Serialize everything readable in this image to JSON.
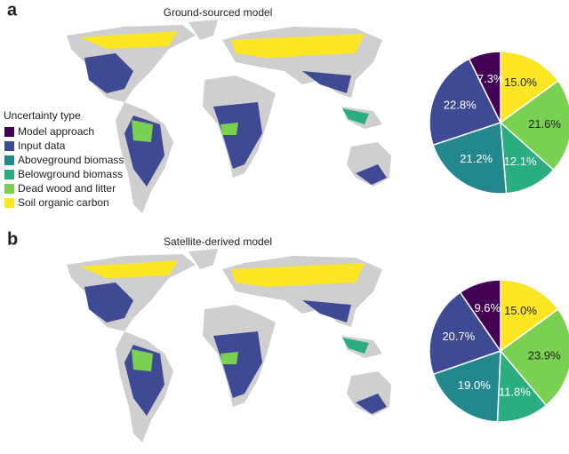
{
  "chart_data": [
    {
      "type": "pie",
      "panel_label": "a",
      "title": "Ground-sourced model",
      "legend_title": "Uncertainty type",
      "categories": [
        "Soil organic carbon",
        "Dead wood and litter",
        "Belowground biomass",
        "Aboveground biomass",
        "Input data",
        "Model approach"
      ],
      "colors": [
        "#fde725",
        "#7ad151",
        "#2aae80",
        "#23888e",
        "#3e4a93",
        "#440154"
      ],
      "values": [
        15.0,
        21.6,
        12.1,
        21.2,
        22.8,
        7.3
      ],
      "value_labels": [
        "15.0%",
        "21.6%",
        "12.1%",
        "21.2%",
        "22.8%",
        "7.3%"
      ]
    },
    {
      "type": "pie",
      "panel_label": "b",
      "title": "Satellite-derived model",
      "values": [
        15.0,
        23.9,
        11.8,
        19.0,
        20.7,
        9.6
      ],
      "value_labels": [
        "15.0%",
        "23.9%",
        "11.8%",
        "19.0%",
        "20.7%",
        "9.6%"
      ]
    }
  ]
}
